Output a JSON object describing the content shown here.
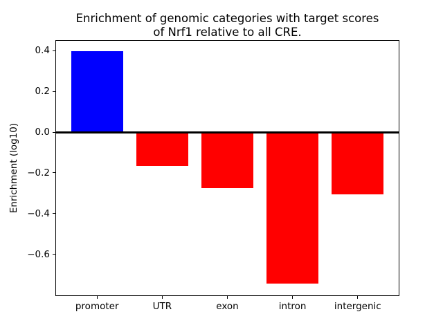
{
  "chart_data": {
    "type": "bar",
    "title_lines": [
      "Enrichment of genomic categories with target scores",
      "of Nrf1 relative to all CRE."
    ],
    "ylabel": "Enrichment (log10)",
    "xlabel": "",
    "categories": [
      "promoter",
      "UTR",
      "exon",
      "intron",
      "intergenic"
    ],
    "values": [
      0.397,
      -0.165,
      -0.276,
      -0.742,
      -0.305
    ],
    "bar_colors": [
      "#0000ff",
      "#ff0000",
      "#ff0000",
      "#ff0000",
      "#ff0000"
    ],
    "positive_color": "#0000ff",
    "negative_color": "#ff0000",
    "yticks": [
      {
        "value": 0.4,
        "label": "0.4"
      },
      {
        "value": 0.2,
        "label": "0.2"
      },
      {
        "value": 0.0,
        "label": "0.0"
      },
      {
        "value": -0.2,
        "label": "−0.2"
      },
      {
        "value": -0.4,
        "label": "−0.4"
      },
      {
        "value": -0.6,
        "label": "−0.6"
      }
    ],
    "ylim": [
      -0.804,
      0.451
    ],
    "xlim": [
      -0.64,
      4.64
    ],
    "bar_width": 0.8,
    "zero_line": true,
    "grid": false,
    "legend_position": "none",
    "background_color": "#ffffff",
    "axis_color": "#000000"
  }
}
